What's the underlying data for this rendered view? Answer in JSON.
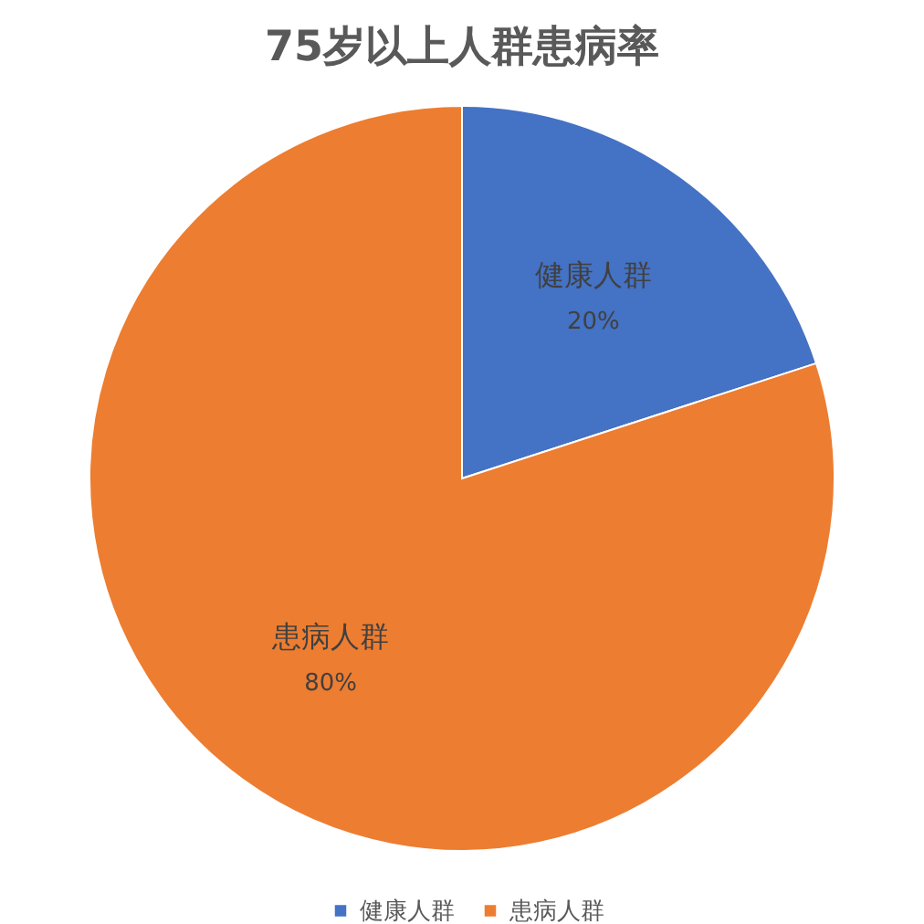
{
  "chart_data": {
    "type": "pie",
    "title": "75岁以上人群患病率",
    "categories": [
      "健康人群",
      "患病人群"
    ],
    "values": [
      20,
      80
    ],
    "colors": [
      "#4472c4",
      "#ed7d31"
    ],
    "value_labels": [
      "20%",
      "80%"
    ],
    "legend": "bottom"
  }
}
